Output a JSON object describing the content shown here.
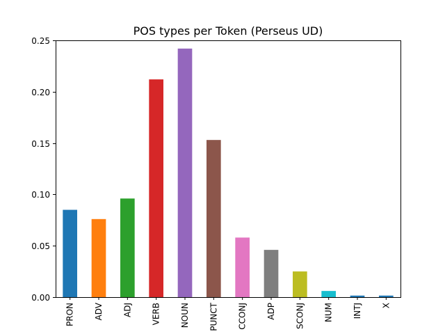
{
  "chart_data": {
    "type": "bar",
    "title": "POS types per Token (Perseus UD)",
    "xlabel": "",
    "ylabel": "",
    "ylim": [
      0,
      0.25
    ],
    "yticks": [
      0.0,
      0.05,
      0.1,
      0.15,
      0.2,
      0.25
    ],
    "ytick_labels": [
      "0.00",
      "0.05",
      "0.10",
      "0.15",
      "0.20",
      "0.25"
    ],
    "categories": [
      "PRON",
      "ADV",
      "ADJ",
      "VERB",
      "NOUN",
      "PUNCT",
      "CCONJ",
      "ADP",
      "SCONJ",
      "NUM",
      "INTJ",
      "X"
    ],
    "values": [
      0.085,
      0.076,
      0.096,
      0.212,
      0.242,
      0.153,
      0.058,
      0.046,
      0.025,
      0.006,
      0.0015,
      0.0015
    ],
    "colors": [
      "#1f77b4",
      "#ff7f0e",
      "#2ca02c",
      "#d62728",
      "#9467bd",
      "#8c564b",
      "#e377c2",
      "#7f7f7f",
      "#bcbd22",
      "#17becf",
      "#1f77b4",
      "#1f77b4"
    ],
    "grid": false,
    "legend": "none"
  }
}
